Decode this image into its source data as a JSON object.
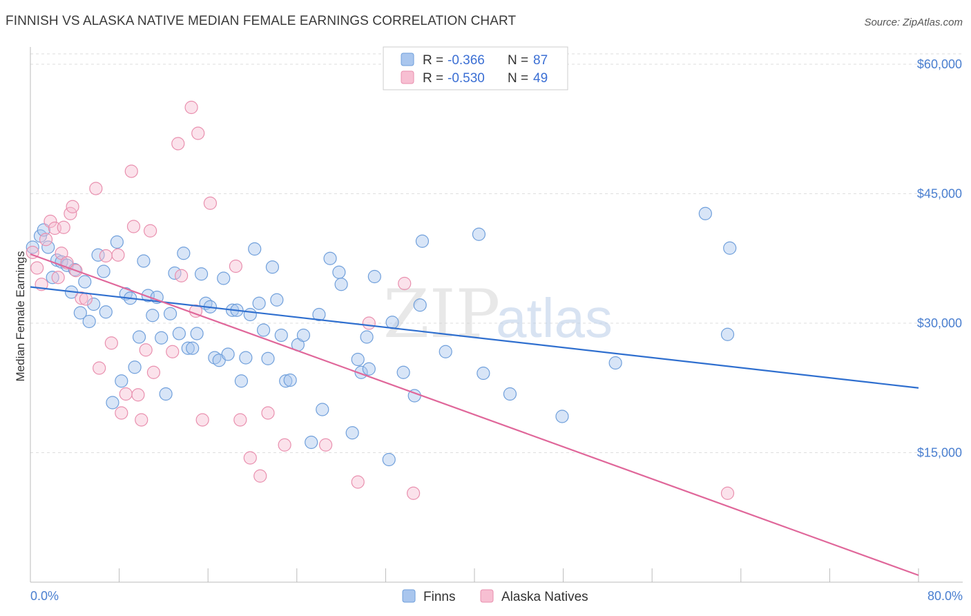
{
  "title": "FINNISH VS ALASKA NATIVE MEDIAN FEMALE EARNINGS CORRELATION CHART",
  "source": "Source: ZipAtlas.com",
  "watermark": {
    "zip": "ZIP",
    "atlas": "atlas"
  },
  "colors": {
    "finns_fill": "#a9c6ee",
    "finns_stroke": "#6f9fdb",
    "finns_line": "#2f6fcf",
    "alaska_fill": "#f7bfd2",
    "alaska_stroke": "#e98fae",
    "alaska_line": "#e0679a",
    "tick_text": "#4a7fd0",
    "grid": "#dedede"
  },
  "legend": {
    "rows": [
      {
        "r_label": "R =",
        "r_value": "-0.366",
        "n_label": "N =",
        "n_value": "87"
      },
      {
        "r_label": "R =",
        "r_value": "-0.530",
        "n_label": "N =",
        "n_value": "49"
      }
    ]
  },
  "bottom_legend": [
    "Finns",
    "Alaska Natives"
  ],
  "chart_data": {
    "type": "scatter",
    "title": "FINNISH VS ALASKA NATIVE MEDIAN FEMALE EARNINGS CORRELATION CHART",
    "xlabel": "",
    "ylabel": "Median Female Earnings",
    "xlim": [
      0,
      80
    ],
    "ylim": [
      0,
      62000
    ],
    "x_tick_labels": [
      "0.0%",
      "80.0%"
    ],
    "y_ticks": [
      15000,
      30000,
      45000,
      60000
    ],
    "y_tick_labels": [
      "$15,000",
      "$30,000",
      "$45,000",
      "$60,000"
    ],
    "grid": true,
    "legend_placement": "top-center",
    "series": [
      {
        "name": "Finns",
        "r": -0.366,
        "n": 87,
        "trend": {
          "x": [
            0,
            80
          ],
          "y": [
            34200,
            22500
          ]
        },
        "points": [
          [
            0.2,
            38800
          ],
          [
            0.9,
            40100
          ],
          [
            1.2,
            40800
          ],
          [
            1.6,
            38800
          ],
          [
            2.0,
            35300
          ],
          [
            2.4,
            37300
          ],
          [
            2.8,
            37100
          ],
          [
            3.3,
            36700
          ],
          [
            3.7,
            33600
          ],
          [
            4.0,
            36200
          ],
          [
            4.5,
            31200
          ],
          [
            4.9,
            34800
          ],
          [
            5.3,
            30200
          ],
          [
            5.7,
            32200
          ],
          [
            6.1,
            37900
          ],
          [
            6.6,
            36000
          ],
          [
            6.8,
            31300
          ],
          [
            7.4,
            20800
          ],
          [
            7.8,
            39400
          ],
          [
            8.2,
            23300
          ],
          [
            8.6,
            33400
          ],
          [
            9.0,
            32900
          ],
          [
            9.4,
            24900
          ],
          [
            9.8,
            28400
          ],
          [
            10.2,
            37200
          ],
          [
            10.6,
            33200
          ],
          [
            11.0,
            30900
          ],
          [
            11.4,
            33000
          ],
          [
            11.8,
            28300
          ],
          [
            12.2,
            21800
          ],
          [
            12.6,
            31100
          ],
          [
            13.0,
            35800
          ],
          [
            13.4,
            28800
          ],
          [
            13.8,
            38100
          ],
          [
            14.2,
            27100
          ],
          [
            14.6,
            27100
          ],
          [
            15.0,
            28800
          ],
          [
            15.4,
            35700
          ],
          [
            15.8,
            32300
          ],
          [
            16.2,
            31900
          ],
          [
            16.6,
            26000
          ],
          [
            17.0,
            25700
          ],
          [
            17.4,
            35200
          ],
          [
            17.8,
            26400
          ],
          [
            18.2,
            31500
          ],
          [
            18.6,
            31500
          ],
          [
            19.0,
            23300
          ],
          [
            19.4,
            26000
          ],
          [
            19.8,
            31000
          ],
          [
            20.2,
            38600
          ],
          [
            20.6,
            32300
          ],
          [
            21.0,
            29200
          ],
          [
            21.4,
            25900
          ],
          [
            21.8,
            36500
          ],
          [
            22.2,
            32700
          ],
          [
            22.6,
            28600
          ],
          [
            23.0,
            23300
          ],
          [
            23.4,
            23400
          ],
          [
            24.1,
            27500
          ],
          [
            24.6,
            28600
          ],
          [
            25.3,
            16200
          ],
          [
            26.0,
            31000
          ],
          [
            26.3,
            20000
          ],
          [
            27.0,
            37500
          ],
          [
            27.8,
            35900
          ],
          [
            28.0,
            34500
          ],
          [
            29.0,
            17300
          ],
          [
            29.5,
            25800
          ],
          [
            29.8,
            24300
          ],
          [
            30.3,
            28400
          ],
          [
            30.5,
            24700
          ],
          [
            31.0,
            35400
          ],
          [
            32.3,
            14200
          ],
          [
            32.6,
            30100
          ],
          [
            33.6,
            24300
          ],
          [
            34.6,
            21600
          ],
          [
            35.1,
            32100
          ],
          [
            35.3,
            39500
          ],
          [
            37.4,
            26700
          ],
          [
            40.4,
            40300
          ],
          [
            40.8,
            24200
          ],
          [
            43.2,
            21800
          ],
          [
            47.9,
            19200
          ],
          [
            52.7,
            25400
          ],
          [
            60.8,
            42700
          ],
          [
            62.8,
            28700
          ],
          [
            63.0,
            38700
          ]
        ]
      },
      {
        "name": "Alaska Natives",
        "r": -0.53,
        "n": 49,
        "trend": {
          "x": [
            0,
            80
          ],
          "y": [
            38000,
            800
          ]
        },
        "points": [
          [
            0.2,
            38200
          ],
          [
            0.6,
            36400
          ],
          [
            1.0,
            34500
          ],
          [
            1.4,
            39700
          ],
          [
            1.8,
            41800
          ],
          [
            2.2,
            41000
          ],
          [
            2.5,
            35300
          ],
          [
            2.8,
            38100
          ],
          [
            3.0,
            41100
          ],
          [
            3.3,
            37000
          ],
          [
            3.6,
            42700
          ],
          [
            3.8,
            43500
          ],
          [
            4.1,
            36100
          ],
          [
            4.6,
            32900
          ],
          [
            5.0,
            32800
          ],
          [
            5.9,
            45600
          ],
          [
            6.2,
            24800
          ],
          [
            6.8,
            37800
          ],
          [
            7.3,
            27700
          ],
          [
            7.9,
            37900
          ],
          [
            8.2,
            19600
          ],
          [
            8.6,
            21800
          ],
          [
            9.1,
            47600
          ],
          [
            9.3,
            41200
          ],
          [
            9.7,
            21700
          ],
          [
            10.0,
            18800
          ],
          [
            10.4,
            26900
          ],
          [
            10.8,
            40700
          ],
          [
            11.1,
            24300
          ],
          [
            12.8,
            26700
          ],
          [
            13.3,
            50800
          ],
          [
            13.6,
            35500
          ],
          [
            14.5,
            55000
          ],
          [
            14.9,
            31400
          ],
          [
            15.1,
            52000
          ],
          [
            15.5,
            18800
          ],
          [
            16.2,
            43900
          ],
          [
            18.5,
            36600
          ],
          [
            18.9,
            18800
          ],
          [
            19.8,
            14400
          ],
          [
            20.7,
            12300
          ],
          [
            21.4,
            19600
          ],
          [
            22.9,
            15900
          ],
          [
            26.6,
            15900
          ],
          [
            29.5,
            11600
          ],
          [
            30.5,
            30000
          ],
          [
            33.7,
            34600
          ],
          [
            34.5,
            10300
          ],
          [
            62.8,
            10300
          ]
        ]
      }
    ]
  }
}
